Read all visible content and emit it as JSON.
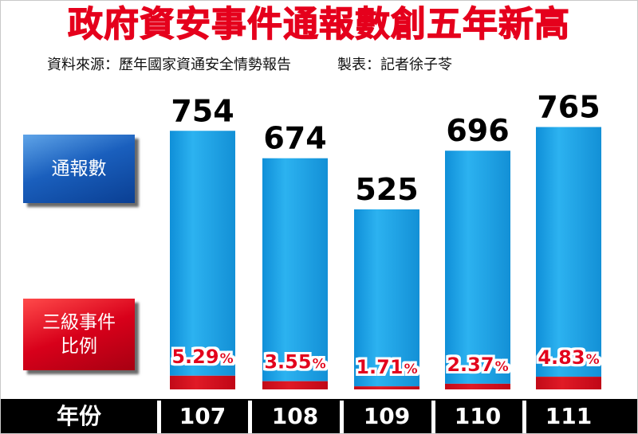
{
  "header": {
    "title": "政府資安事件通報數創五年新高",
    "source": "資料來源：歷年國家資通安全情勢報告",
    "credit": "製表：記者徐子苓"
  },
  "legend": {
    "total_label": "通報數",
    "level3_label_line1": "三級事件",
    "level3_label_line2": "比例"
  },
  "axis": {
    "x_label": "年份"
  },
  "colors": {
    "title": "#e5001c",
    "bar_blue": "#1aa3e8",
    "bar_red": "#d40f1e",
    "percent_text": "#e3001b",
    "footer": "#000000"
  },
  "chart_data": {
    "type": "bar",
    "title": "政府資安事件通報數創五年新高",
    "xlabel": "年份",
    "ylabel": "",
    "ylim": [
      0,
      800
    ],
    "categories": [
      "107",
      "108",
      "109",
      "110",
      "111"
    ],
    "series": [
      {
        "name": "通報數",
        "values": [
          754,
          674,
          525,
          696,
          765
        ]
      },
      {
        "name": "三級事件比例",
        "values": [
          5.29,
          3.55,
          1.71,
          2.37,
          4.83
        ],
        "unit": "%"
      }
    ],
    "value_labels": [
      "754",
      "674",
      "525",
      "696",
      "765"
    ],
    "percent_labels": [
      "5.29",
      "3.55",
      "1.71",
      "2.37",
      "4.83"
    ],
    "percent_unit": "%"
  }
}
